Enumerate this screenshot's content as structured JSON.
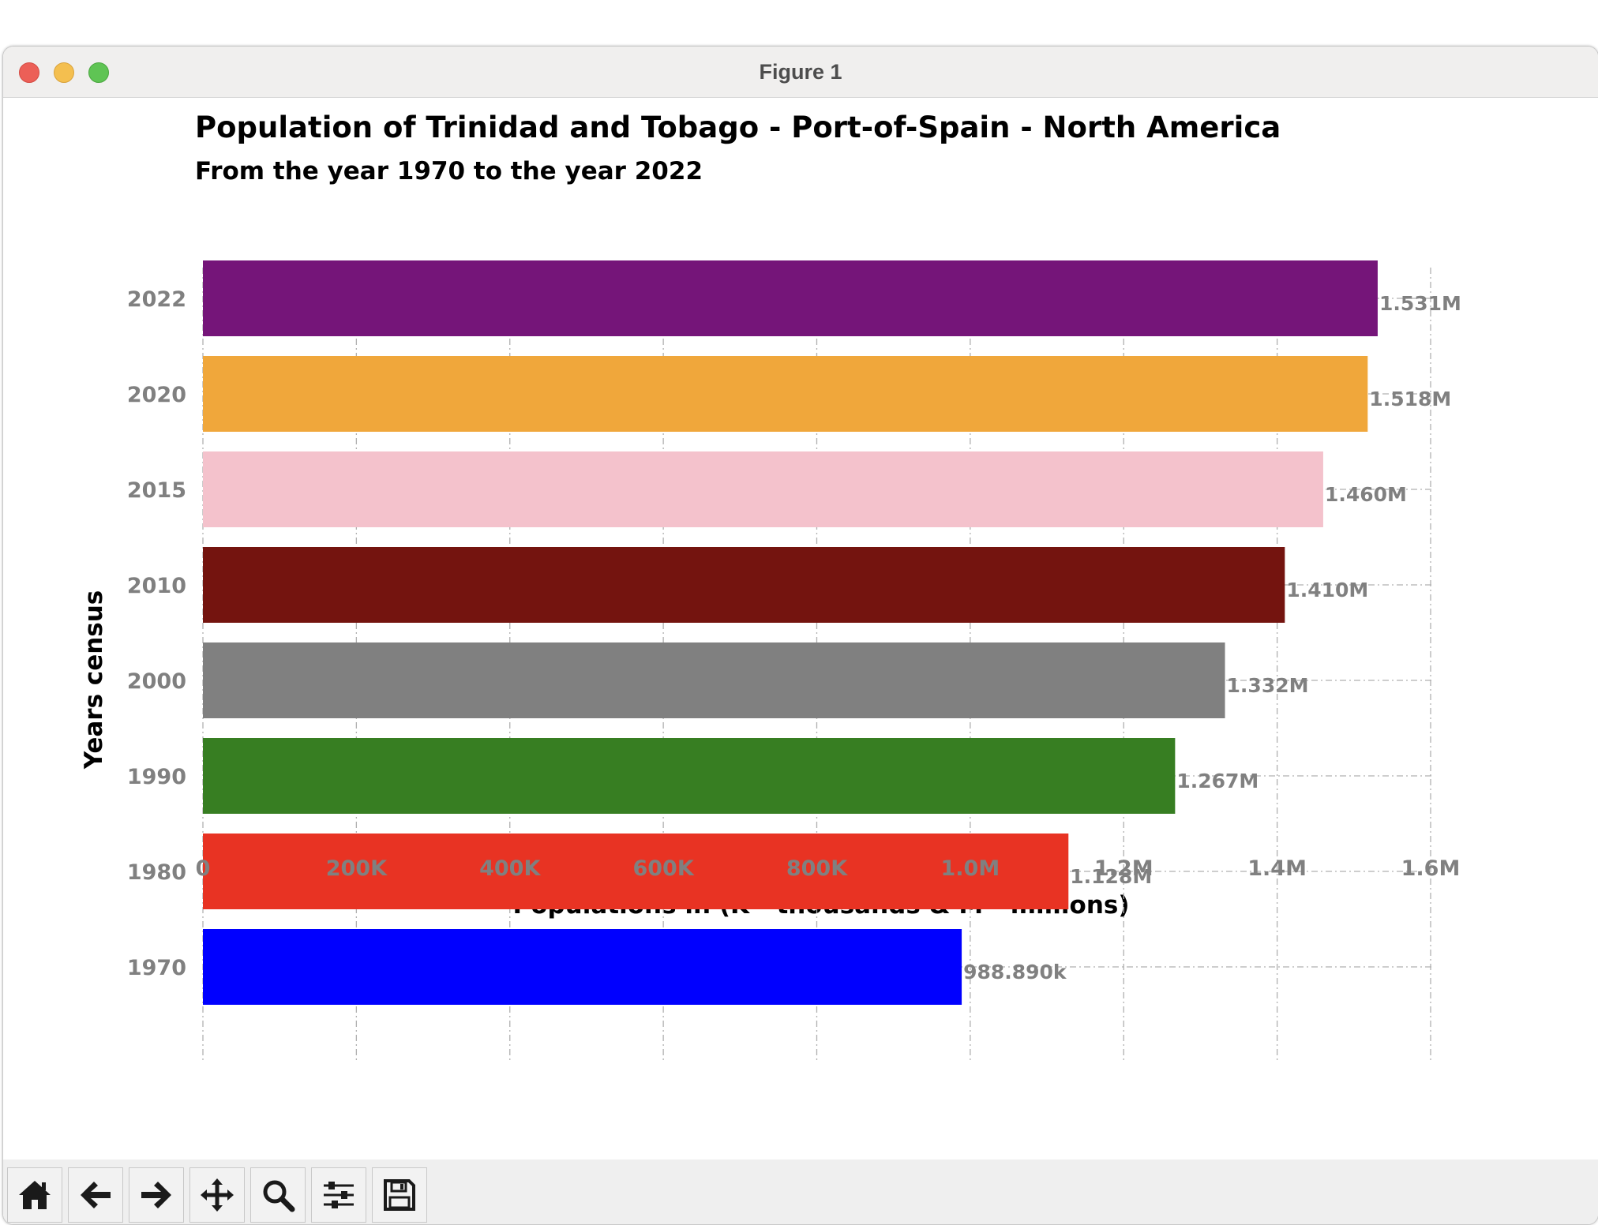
{
  "window": {
    "title": "Figure 1"
  },
  "toolbar": {
    "buttons": [
      {
        "name": "home-button",
        "icon": "home-icon"
      },
      {
        "name": "back-button",
        "icon": "arrow-left-icon"
      },
      {
        "name": "forward-button",
        "icon": "arrow-right-icon"
      },
      {
        "name": "pan-button",
        "icon": "move-icon"
      },
      {
        "name": "zoom-button",
        "icon": "magnifier-icon"
      },
      {
        "name": "configure-subplots-button",
        "icon": "sliders-icon"
      },
      {
        "name": "save-button",
        "icon": "floppy-disk-icon"
      }
    ]
  },
  "chart_data": {
    "type": "bar",
    "orientation": "horizontal",
    "title": "Population of Trinidad and Tobago - Port-of-Spain - North America",
    "subtitle": "From the year 1970 to the year 2022",
    "xlabel": "Populations in (K - thousands & M - millions)",
    "ylabel": "Years census",
    "categories": [
      "1970",
      "1980",
      "1990",
      "2000",
      "2010",
      "2015",
      "2020",
      "2022"
    ],
    "values": [
      988890,
      1128000,
      1267000,
      1332000,
      1410000,
      1460000,
      1518000,
      1531000
    ],
    "data_labels": [
      "988.890k",
      "1.128M",
      "1.267M",
      "1.332M",
      "1.410M",
      "1.460M",
      "1.518M",
      "1.531M"
    ],
    "colors": [
      "#0000ff",
      "#e83323",
      "#377e22",
      "#808080",
      "#74140f",
      "#f4c2cc",
      "#f0a73b",
      "#751579"
    ],
    "xlim": [
      0,
      1600000
    ],
    "xticks": [
      0,
      200000,
      400000,
      600000,
      800000,
      1000000,
      1200000,
      1400000,
      1600000
    ],
    "xtick_labels": [
      "0",
      "200K",
      "400K",
      "600K",
      "800K",
      "1.0M",
      "1.2M",
      "1.4M",
      "1.6M"
    ],
    "grid": true,
    "legend": "none"
  }
}
